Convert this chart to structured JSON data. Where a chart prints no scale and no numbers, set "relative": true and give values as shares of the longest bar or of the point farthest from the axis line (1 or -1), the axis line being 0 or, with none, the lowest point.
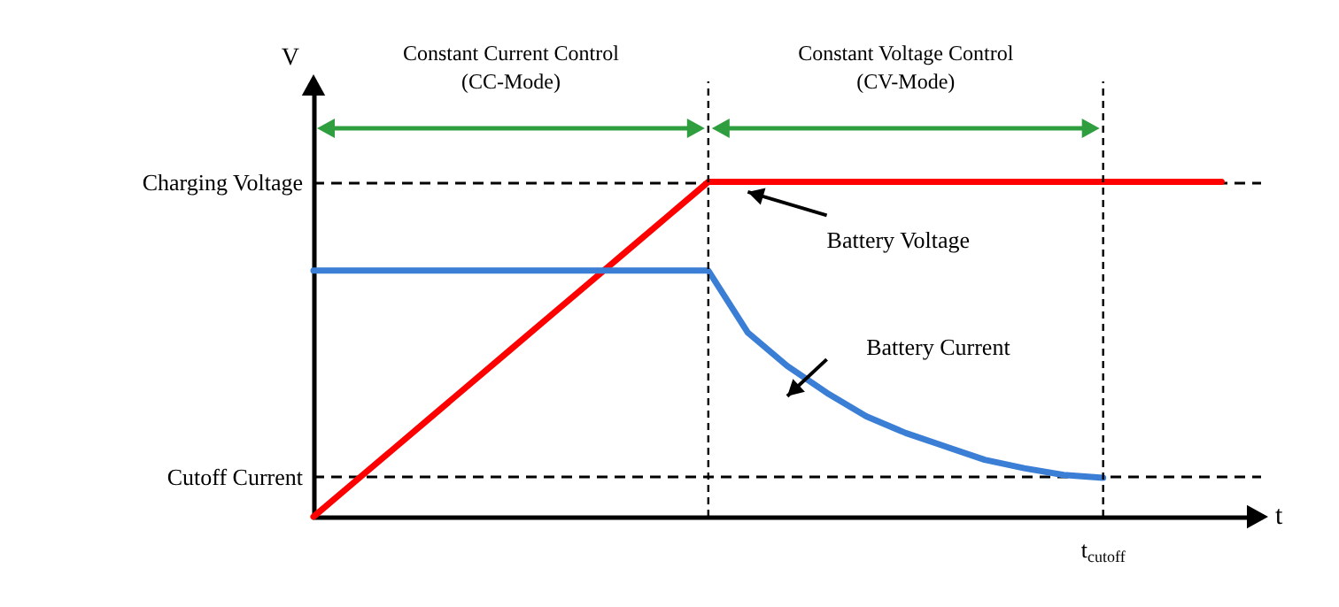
{
  "chart_data": {
    "type": "line",
    "relative": true,
    "xlabel": "t",
    "ylabel": "V",
    "marker": "none",
    "line_style": "solid",
    "categories": [
      null,
      null,
      null,
      null,
      null,
      null,
      null,
      null,
      null,
      null,
      null,
      null,
      null,
      null,
      null,
      null,
      null,
      null,
      null,
      null,
      null,
      null,
      null,
      null,
      null
    ],
    "series": [
      {
        "name": "Battery Voltage",
        "color": "#ff0000",
        "values": [
          0,
          0.1,
          0.2,
          0.3,
          0.4,
          0.5,
          0.6,
          0.7,
          0.8,
          0.9,
          1,
          1,
          1,
          1,
          1,
          1,
          1,
          1,
          1,
          1,
          1,
          1,
          1,
          1,
          null
        ]
      },
      {
        "name": "Battery Current",
        "color": "#3a7fd5",
        "values": [
          0.735,
          0.735,
          0.735,
          0.735,
          0.735,
          0.735,
          0.735,
          0.735,
          0.735,
          0.735,
          0.735,
          0.55,
          0.45,
          0.37,
          0.3,
          0.25,
          0.21,
          0.17,
          0.145,
          0.125,
          0.116,
          null,
          null,
          null,
          null
        ]
      }
    ],
    "ref_lines": [
      {
        "axis": "y",
        "value": 1,
        "label": "Charging Voltage",
        "line_style": "dashed",
        "color": "#000000"
      },
      {
        "axis": "y",
        "value": 0.116,
        "label": "Cutoff Current",
        "line_style": "dashed",
        "color": "#000000"
      }
    ],
    "annotations": [
      "Constant Current Control\n(CC-Mode)",
      "Constant Voltage Control\n(CV-Mode)",
      "t$_{cutoff}$"
    ]
  }
}
